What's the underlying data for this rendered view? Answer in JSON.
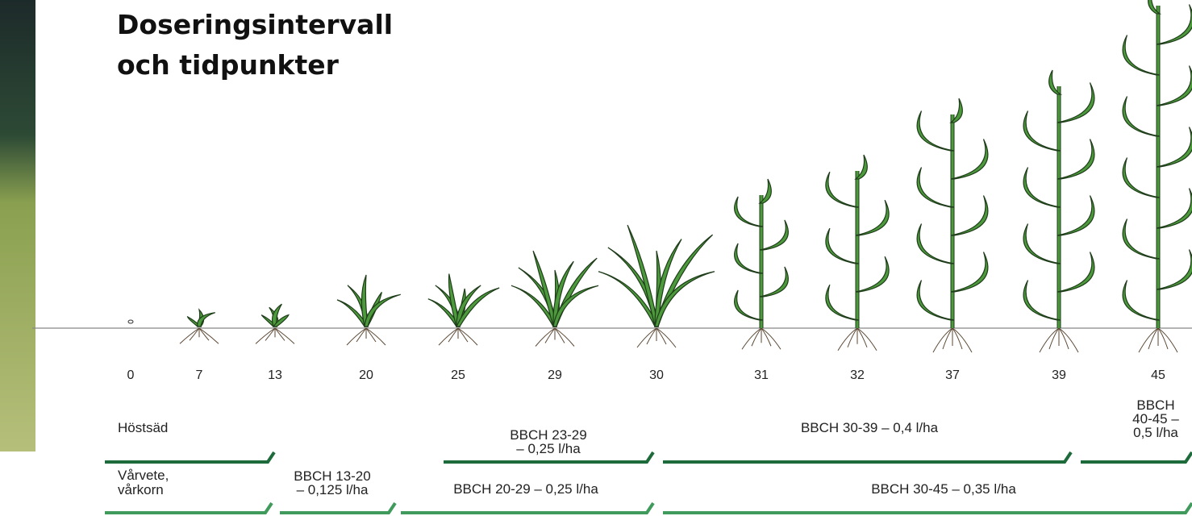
{
  "title_lines": [
    "Doseringsintervall",
    "och tidpunkter"
  ],
  "stages": [
    "0",
    "7",
    "13",
    "20",
    "25",
    "29",
    "30",
    "31",
    "32",
    "37",
    "39",
    "45"
  ],
  "rows": [
    {
      "label": [
        "Höstsäd"
      ],
      "segments": [
        {
          "lines": [
            "BBCH 23-29",
            "– 0,25 l/ha"
          ]
        },
        {
          "lines": [
            "BBCH 30-39 – 0,4 l/ha"
          ]
        },
        {
          "lines": [
            "BBCH",
            "40-45 –",
            "0,5 l/ha"
          ]
        }
      ]
    },
    {
      "label": [
        "Vårvete,",
        "vårkorn"
      ],
      "segments": [
        {
          "lines": [
            "BBCH 13-20",
            "– 0,125 l/ha"
          ]
        },
        {
          "lines": [
            "BBCH 20-29 – 0,25 l/ha"
          ]
        },
        {
          "lines": [
            "BBCH 30-45 – 0,35 l/ha"
          ]
        }
      ]
    }
  ]
}
